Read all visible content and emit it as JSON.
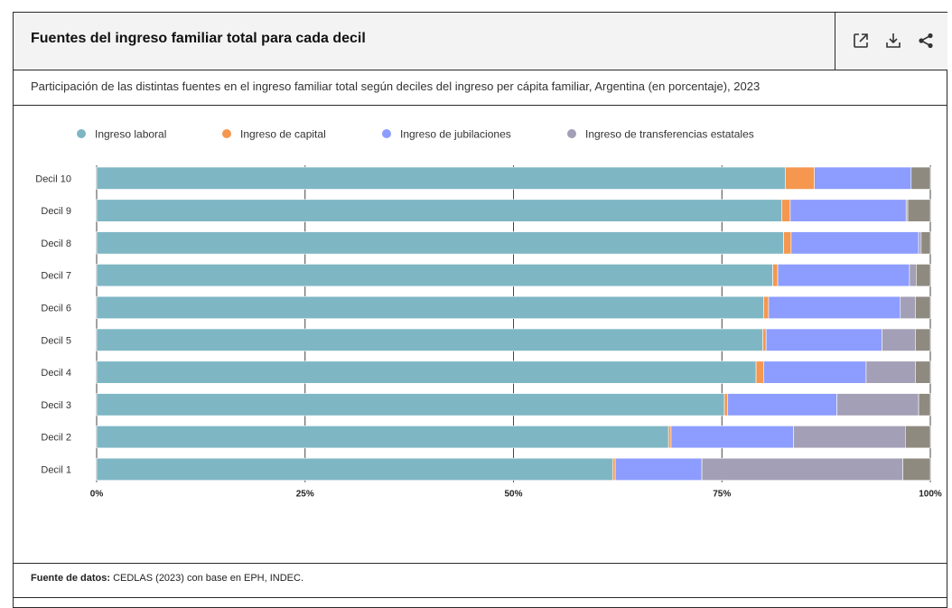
{
  "header": {
    "title": "Fuentes del ingreso familiar total para cada decil",
    "tools": [
      {
        "name": "open-external-icon"
      },
      {
        "name": "download-icon"
      },
      {
        "name": "share-icon"
      }
    ]
  },
  "subtitle": "Participación de las distintas fuentes en el ingreso familiar total según deciles del ingreso per cápita familiar, Argentina (en porcentaje), 2023",
  "footer": {
    "source_label": "Fuente de datos:",
    "source_text": "CEDLAS (2023) con base en EPH, INDEC."
  },
  "colors": {
    "laboral": "#7eb6c4",
    "capital": "#f5974f",
    "jubilaciones": "#8c9cff",
    "transferencias": "#a39fb6",
    "otros": "#8f8a80"
  },
  "chart_data": {
    "type": "bar",
    "orientation": "horizontal",
    "stacked": true,
    "categories": [
      "Decil 10",
      "Decil 9",
      "Decil 8",
      "Decil 7",
      "Decil 6",
      "Decil 5",
      "Decil 4",
      "Decil 3",
      "Decil 2",
      "Decil 1"
    ],
    "series": [
      {
        "name": "Ingreso laboral",
        "key": "laboral",
        "values": [
          82.6,
          82.2,
          82.4,
          81.1,
          80.0,
          79.9,
          79.1,
          75.3,
          68.6,
          61.9
        ]
      },
      {
        "name": "Ingreso de capital",
        "key": "capital",
        "values": [
          3.5,
          1.0,
          0.9,
          0.6,
          0.6,
          0.4,
          0.9,
          0.4,
          0.3,
          0.3
        ]
      },
      {
        "name": "Ingreso de jubilaciones",
        "key": "jubilaciones",
        "values": [
          11.6,
          13.9,
          15.3,
          15.8,
          15.8,
          13.9,
          12.3,
          13.1,
          14.7,
          10.4
        ]
      },
      {
        "name": "Ingreso de transferencias estatales",
        "key": "transferencias",
        "values": [
          0.0,
          0.2,
          0.3,
          0.8,
          1.8,
          4.0,
          5.9,
          9.8,
          13.4,
          24.1
        ]
      },
      {
        "name": "",
        "key": "otros",
        "values": [
          2.3,
          2.7,
          1.1,
          1.7,
          1.8,
          1.8,
          1.8,
          1.4,
          3.0,
          3.3
        ]
      }
    ],
    "xlim": [
      0,
      100
    ],
    "xticks": [
      {
        "value": 0,
        "label": "0%"
      },
      {
        "value": 25,
        "label": "25%"
      },
      {
        "value": 50,
        "label": "50%"
      },
      {
        "value": 75,
        "label": "75%"
      },
      {
        "value": 100,
        "label": "100%"
      }
    ],
    "legend_position": "top-left",
    "grid": true
  }
}
